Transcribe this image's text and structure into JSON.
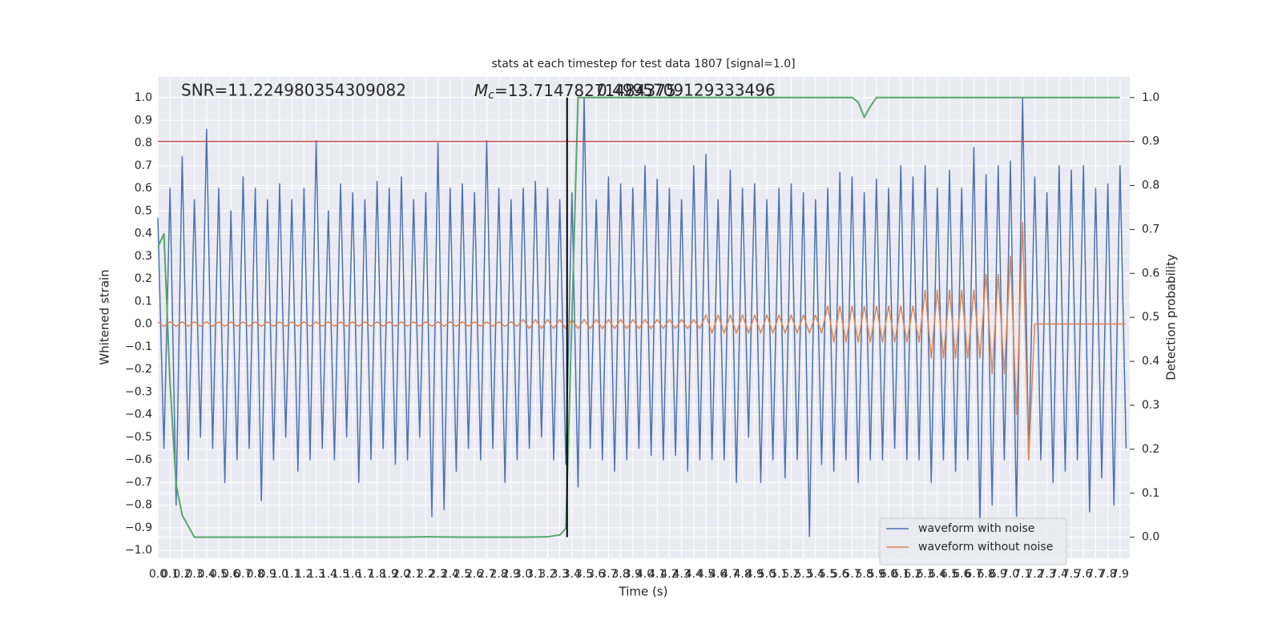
{
  "chart_data": {
    "type": "line",
    "title": "stats at each timestep for test data 1807 [signal=1.0]",
    "xlabel": "Time (s)",
    "ylabel": "Whitened strain",
    "y2label": "Detection probability",
    "annotations": {
      "snr": "SNR=11.224980354309082",
      "mc_symbol": "M",
      "mc_sub": "c",
      "mc_value": "=13.71478271484375",
      "extra": "0.4995709129333496"
    },
    "xlim": [
      0,
      7.98
    ],
    "ylim": [
      -1.035,
      1.092
    ],
    "y2lim": [
      -0.048,
      1.047
    ],
    "xticks": [
      {
        "value": 0,
        "label": "0.0"
      },
      0.1,
      0.2,
      0.3,
      0.4,
      0.5,
      0.6,
      0.7,
      0.8,
      0.9,
      {
        "value": 1,
        "label": "1.0"
      },
      1.1,
      1.2,
      1.3,
      1.4,
      1.5,
      1.6,
      1.7,
      1.8,
      1.9,
      {
        "value": 2,
        "label": "2.0"
      },
      2.1,
      2.2,
      2.3,
      2.4,
      2.5,
      2.6,
      2.7,
      2.8,
      2.9,
      {
        "value": 3,
        "label": "3.0"
      },
      3.1,
      3.2,
      3.3,
      3.4,
      3.5,
      3.6,
      3.7,
      3.8,
      3.9,
      {
        "value": 4,
        "label": "4.0"
      },
      4.1,
      4.2,
      4.3,
      4.4,
      4.5,
      4.6,
      4.7,
      4.8,
      4.9,
      {
        "value": 5,
        "label": "5.0"
      },
      5.1,
      5.2,
      5.3,
      5.4,
      5.5,
      5.6,
      5.7,
      5.8,
      5.9,
      {
        "value": 6,
        "label": "6.0"
      },
      6.1,
      6.2,
      6.3,
      6.4,
      6.5,
      6.6,
      6.7,
      6.8,
      6.9,
      {
        "value": 7,
        "label": "7.0"
      },
      7.1,
      7.2,
      7.3,
      7.4,
      7.5,
      7.6,
      7.7,
      7.8,
      7.9
    ],
    "yticks": [
      {
        "value": 1,
        "label": "1.0"
      },
      0.9,
      0.8,
      0.7,
      0.6,
      0.5,
      0.4,
      0.3,
      0.2,
      0.1,
      {
        "value": 0,
        "label": "0.0"
      },
      {
        "value": -0.1,
        "label": "−0.1"
      },
      {
        "value": -0.2,
        "label": "−0.2"
      },
      {
        "value": -0.3,
        "label": "−0.3"
      },
      {
        "value": -0.4,
        "label": "−0.4"
      },
      {
        "value": -0.5,
        "label": "−0.5"
      },
      {
        "value": -0.6,
        "label": "−0.6"
      },
      {
        "value": -0.7,
        "label": "−0.7"
      },
      {
        "value": -0.8,
        "label": "−0.8"
      },
      {
        "value": -0.9,
        "label": "−0.9"
      },
      {
        "value": -1,
        "label": "−1.0"
      }
    ],
    "y2ticks": [
      {
        "value": 1,
        "label": "1.0"
      },
      0.9,
      0.8,
      0.7,
      0.6,
      0.5,
      0.4,
      0.3,
      0.2,
      0.1,
      {
        "value": 0,
        "label": "0.0"
      }
    ],
    "grid": true,
    "legend": "lower right",
    "hline": {
      "value": 0.9,
      "axis": "y2",
      "color": "#c44e52"
    },
    "vline": {
      "value": 3.36,
      "y2range": [
        0,
        1
      ],
      "color": "#000000"
    },
    "x": [
      0,
      0.05,
      0.1,
      0.15,
      0.2,
      0.25,
      0.3,
      0.35,
      0.4,
      0.45,
      0.5,
      0.55,
      0.6,
      0.65,
      0.7,
      0.75,
      0.8,
      0.85,
      0.9,
      0.95,
      1,
      1.05,
      1.1,
      1.15,
      1.2,
      1.25,
      1.3,
      1.35,
      1.4,
      1.45,
      1.5,
      1.55,
      1.6,
      1.65,
      1.7,
      1.75,
      1.8,
      1.85,
      1.9,
      1.95,
      2,
      2.05,
      2.1,
      2.15,
      2.2,
      2.25,
      2.3,
      2.35,
      2.4,
      2.45,
      2.5,
      2.55,
      2.6,
      2.65,
      2.7,
      2.75,
      2.8,
      2.85,
      2.9,
      2.95,
      3,
      3.05,
      3.1,
      3.15,
      3.2,
      3.25,
      3.3,
      3.35,
      3.4,
      3.45,
      3.5,
      3.55,
      3.6,
      3.65,
      3.7,
      3.75,
      3.8,
      3.85,
      3.9,
      3.95,
      4,
      4.05,
      4.1,
      4.15,
      4.2,
      4.25,
      4.3,
      4.35,
      4.4,
      4.45,
      4.5,
      4.55,
      4.6,
      4.65,
      4.7,
      4.75,
      4.8,
      4.85,
      4.9,
      4.95,
      5,
      5.05,
      5.1,
      5.15,
      5.2,
      5.25,
      5.3,
      5.35,
      5.4,
      5.45,
      5.5,
      5.55,
      5.6,
      5.65,
      5.7,
      5.75,
      5.8,
      5.85,
      5.9,
      5.95,
      6,
      6.05,
      6.1,
      6.15,
      6.2,
      6.25,
      6.3,
      6.35,
      6.4,
      6.45,
      6.5,
      6.55,
      6.6,
      6.65,
      6.7,
      6.75,
      6.8,
      6.85,
      6.9,
      6.95,
      7,
      7.05,
      7.1,
      7.15,
      7.2,
      7.25,
      7.3,
      7.35,
      7.4,
      7.45,
      7.5,
      7.55,
      7.6,
      7.65,
      7.7,
      7.75,
      7.8,
      7.85,
      7.9,
      7.95
    ],
    "series": [
      {
        "name": "waveform with noise",
        "color": "#4c72b0",
        "values": [
          0.47,
          -0.55,
          0.6,
          -0.8,
          0.74,
          -0.6,
          0.55,
          -0.5,
          0.86,
          -0.55,
          0.6,
          -0.7,
          0.5,
          -0.6,
          0.65,
          -0.55,
          0.6,
          -0.78,
          0.55,
          -0.6,
          0.62,
          -0.5,
          0.55,
          -0.65,
          0.6,
          -0.6,
          0.81,
          -0.55,
          0.5,
          -0.6,
          0.62,
          -0.5,
          0.58,
          -0.7,
          0.55,
          -0.6,
          0.63,
          -0.55,
          0.6,
          -0.62,
          0.65,
          -0.6,
          0.55,
          -0.5,
          0.58,
          -0.85,
          0.8,
          -0.82,
          0.6,
          -0.65,
          0.62,
          -0.55,
          0.58,
          -0.6,
          0.81,
          -0.55,
          0.6,
          -0.7,
          0.55,
          -0.6,
          0.6,
          -0.55,
          0.63,
          -0.5,
          0.6,
          -0.6,
          0.55,
          -0.62,
          0.58,
          -0.72,
          1.0,
          -0.55,
          0.55,
          -0.6,
          0.65,
          -0.65,
          0.62,
          -0.6,
          0.6,
          -0.55,
          0.7,
          -0.58,
          0.64,
          -0.6,
          0.6,
          -0.58,
          0.55,
          -0.65,
          0.7,
          -0.6,
          0.75,
          -0.6,
          0.55,
          -0.6,
          0.68,
          -0.7,
          0.6,
          -0.5,
          0.62,
          -0.7,
          0.55,
          -0.6,
          0.6,
          -0.68,
          0.62,
          -0.6,
          0.58,
          -0.94,
          0.55,
          -0.62,
          0.6,
          -0.65,
          0.67,
          -0.6,
          0.65,
          -0.7,
          0.58,
          -0.6,
          0.64,
          -0.6,
          0.6,
          -0.55,
          0.7,
          -0.6,
          0.65,
          -0.6,
          0.7,
          -0.7,
          0.6,
          -0.6,
          0.68,
          -0.65,
          0.6,
          -0.6,
          0.78,
          -0.89,
          0.66,
          -0.8,
          0.7,
          -0.6,
          0.72,
          -0.85,
          1.0,
          -0.6,
          0.65,
          -0.6,
          0.58,
          -0.7,
          0.7,
          -0.65,
          0.68,
          -0.6,
          0.7,
          -0.83,
          0.6,
          -0.68,
          0.62,
          -0.8,
          0.7,
          -0.55
        ]
      },
      {
        "name": "waveform without noise",
        "color": "#dd8452",
        "values": [
          0.01,
          -0.01,
          0.01,
          -0.01,
          0.01,
          -0.01,
          0.01,
          -0.01,
          0.01,
          -0.01,
          0.01,
          -0.01,
          0.01,
          -0.01,
          0.01,
          -0.01,
          0.01,
          -0.01,
          0.01,
          -0.01,
          0.01,
          -0.01,
          0.01,
          -0.01,
          0.01,
          -0.01,
          0.01,
          -0.01,
          0.01,
          -0.01,
          0.01,
          -0.01,
          0.01,
          -0.01,
          0.01,
          -0.01,
          0.01,
          -0.01,
          0.01,
          -0.01,
          0.01,
          -0.01,
          0.01,
          -0.01,
          0.01,
          -0.01,
          0.01,
          -0.01,
          0.01,
          -0.01,
          0.01,
          -0.01,
          0.01,
          -0.01,
          0.01,
          -0.01,
          0.01,
          -0.01,
          0.01,
          -0.01,
          0.02,
          -0.02,
          0.02,
          -0.02,
          0.02,
          -0.02,
          0.02,
          -0.02,
          0.02,
          -0.02,
          0.02,
          -0.02,
          0.02,
          -0.02,
          0.02,
          -0.02,
          0.02,
          -0.02,
          0.02,
          -0.02,
          0.02,
          -0.02,
          0.02,
          -0.02,
          0.02,
          -0.02,
          0.02,
          -0.02,
          0.02,
          -0.02,
          0.04,
          -0.04,
          0.04,
          -0.04,
          0.04,
          -0.04,
          0.04,
          -0.04,
          0.04,
          -0.04,
          0.04,
          -0.04,
          0.04,
          -0.04,
          0.04,
          -0.04,
          0.04,
          -0.04,
          0.04,
          -0.04,
          0.08,
          -0.08,
          0.08,
          -0.08,
          0.08,
          -0.08,
          0.08,
          -0.08,
          0.08,
          -0.08,
          0.08,
          -0.08,
          0.08,
          -0.08,
          0.08,
          -0.08,
          0.15,
          -0.15,
          0.15,
          -0.15,
          0.15,
          -0.15,
          0.15,
          -0.15,
          0.15,
          -0.15,
          0.22,
          -0.22,
          0.22,
          -0.22,
          0.3,
          -0.4,
          0.45,
          -0.6,
          0,
          0,
          0,
          0,
          0,
          0,
          0,
          0,
          0,
          0,
          0,
          0,
          0,
          0,
          0,
          0
        ]
      },
      {
        "color": "#55a868",
        "axis": "y2",
        "x": [
          0,
          0.05,
          0.1,
          0.15,
          0.2,
          0.3,
          1.0,
          2.0,
          2.2,
          2.5,
          3.0,
          3.2,
          3.3,
          3.35,
          3.4,
          3.45,
          5.6,
          5.7,
          5.75,
          5.8,
          5.85,
          5.9,
          6.0,
          7.9
        ],
        "values": [
          0.66,
          0.69,
          0.35,
          0.12,
          0.05,
          0,
          0,
          0,
          0.001,
          0,
          0,
          0.001,
          0.005,
          0.02,
          0.5,
          1,
          1,
          1,
          0.99,
          0.955,
          0.98,
          1,
          1,
          1
        ]
      }
    ]
  }
}
